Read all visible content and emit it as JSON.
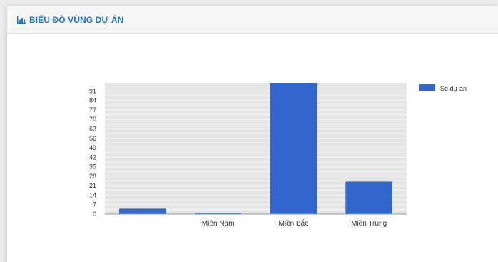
{
  "panel": {
    "title": "BIỂU ĐỒ VÙNG DỰ ÁN",
    "title_icon": "bar-chart-icon"
  },
  "colors": {
    "accent": "#1f77c9",
    "bar": "#3366cc",
    "plot_bg": "#e5e5e5",
    "gridline": "#ffffff"
  },
  "chart_data": {
    "type": "bar",
    "categories": [
      "",
      "Miền Nam",
      "Miền Bắc",
      "Miền Trung"
    ],
    "series": [
      {
        "name": "Số dự án",
        "values": [
          4,
          1,
          97,
          24
        ]
      }
    ],
    "y_ticks": [
      0,
      7,
      14,
      21,
      28,
      35,
      42,
      49,
      56,
      63,
      70,
      77,
      84,
      91
    ],
    "ylim": [
      0,
      97
    ],
    "grid": true,
    "legend_position": "top-right"
  }
}
